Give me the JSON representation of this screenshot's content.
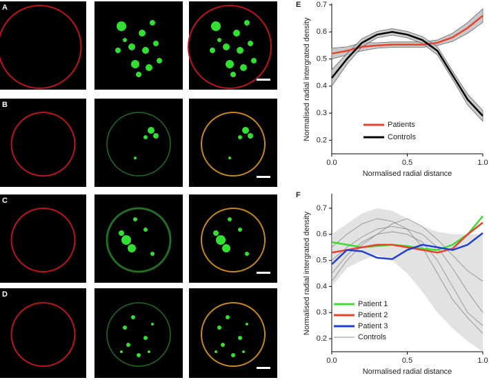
{
  "panels": [
    "A",
    "B",
    "C",
    "D"
  ],
  "chart_data": [
    {
      "type": "line",
      "panel": "E",
      "xlabel": "Normalised radial distance",
      "ylabel": "Normalised radial intergrated density",
      "x": [
        0,
        0.1,
        0.2,
        0.3,
        0.4,
        0.5,
        0.6,
        0.7,
        0.8,
        0.9,
        1
      ],
      "xlim": [
        0,
        1
      ],
      "ylim": [
        0.15,
        0.7
      ],
      "xticks": [
        {
          "value": 0,
          "label": "0.0"
        },
        0.5,
        {
          "value": 1,
          "label": "1.0"
        }
      ],
      "yticks": [
        0.2,
        0.3,
        0.4,
        0.5,
        0.6,
        0.7
      ],
      "series": [
        {
          "name": "Patients",
          "color": "#e8412c",
          "values": [
            0.52,
            0.53,
            0.545,
            0.55,
            0.553,
            0.553,
            0.553,
            0.56,
            0.58,
            0.615,
            0.66
          ],
          "lower": [
            0.5,
            0.515,
            0.53,
            0.54,
            0.543,
            0.543,
            0.543,
            0.55,
            0.565,
            0.595,
            0.635
          ],
          "upper": [
            0.54,
            0.545,
            0.56,
            0.56,
            0.563,
            0.563,
            0.563,
            0.57,
            0.595,
            0.635,
            0.685
          ]
        },
        {
          "name": "Controls",
          "color": "#000000",
          "values": [
            0.43,
            0.5,
            0.56,
            0.59,
            0.6,
            0.59,
            0.57,
            0.53,
            0.44,
            0.35,
            0.29
          ],
          "lower": [
            0.4,
            0.48,
            0.545,
            0.578,
            0.588,
            0.578,
            0.557,
            0.515,
            0.425,
            0.33,
            0.27
          ],
          "upper": [
            0.46,
            0.52,
            0.575,
            0.602,
            0.612,
            0.602,
            0.583,
            0.545,
            0.455,
            0.37,
            0.31
          ]
        }
      ]
    },
    {
      "type": "line",
      "panel": "F",
      "xlabel": "Normalised radial distance",
      "ylabel": "Normalised radial intergrated density",
      "x": [
        0,
        0.1,
        0.2,
        0.3,
        0.4,
        0.5,
        0.6,
        0.7,
        0.8,
        0.9,
        1
      ],
      "xlim": [
        0,
        1
      ],
      "ylim": [
        0.15,
        0.75
      ],
      "xticks": [
        {
          "value": 0,
          "label": "0.0"
        },
        0.5,
        {
          "value": 1,
          "label": "1.0"
        }
      ],
      "yticks": [
        0.2,
        0.3,
        0.4,
        0.5,
        0.6,
        0.7
      ],
      "series": [
        {
          "name": "Patient 1",
          "color": "#3ddc2e",
          "values": [
            0.57,
            0.56,
            0.55,
            0.555,
            0.56,
            0.555,
            0.545,
            0.54,
            0.56,
            0.6,
            0.67
          ]
        },
        {
          "name": "Patient 2",
          "color": "#e8412c",
          "values": [
            0.53,
            0.54,
            0.55,
            0.56,
            0.56,
            0.55,
            0.54,
            0.53,
            0.545,
            0.6,
            0.645
          ]
        },
        {
          "name": "Patient 3",
          "color": "#1f3fd6",
          "values": [
            0.485,
            0.54,
            0.535,
            0.51,
            0.505,
            0.54,
            0.56,
            0.55,
            0.54,
            0.56,
            0.605
          ]
        },
        {
          "name": "Controls",
          "color": "#888888",
          "lower": [
            0.4,
            0.47,
            0.5,
            0.52,
            0.5,
            0.45,
            0.38,
            0.3,
            0.24,
            0.19,
            0.15
          ],
          "upper": [
            0.6,
            0.64,
            0.68,
            0.7,
            0.69,
            0.66,
            0.63,
            0.61,
            0.6,
            0.6,
            0.6
          ],
          "lines": [
            [
              0.55,
              0.6,
              0.64,
              0.66,
              0.65,
              0.62,
              0.55,
              0.45,
              0.35,
              0.28,
              0.22
            ],
            [
              0.45,
              0.52,
              0.57,
              0.6,
              0.61,
              0.6,
              0.57,
              0.5,
              0.4,
              0.3,
              0.25
            ],
            [
              0.5,
              0.55,
              0.59,
              0.62,
              0.63,
              0.62,
              0.6,
              0.55,
              0.47,
              0.38,
              0.3
            ],
            [
              0.42,
              0.5,
              0.56,
              0.6,
              0.64,
              0.66,
              0.63,
              0.58,
              0.52,
              0.46,
              0.42
            ]
          ]
        }
      ]
    }
  ]
}
